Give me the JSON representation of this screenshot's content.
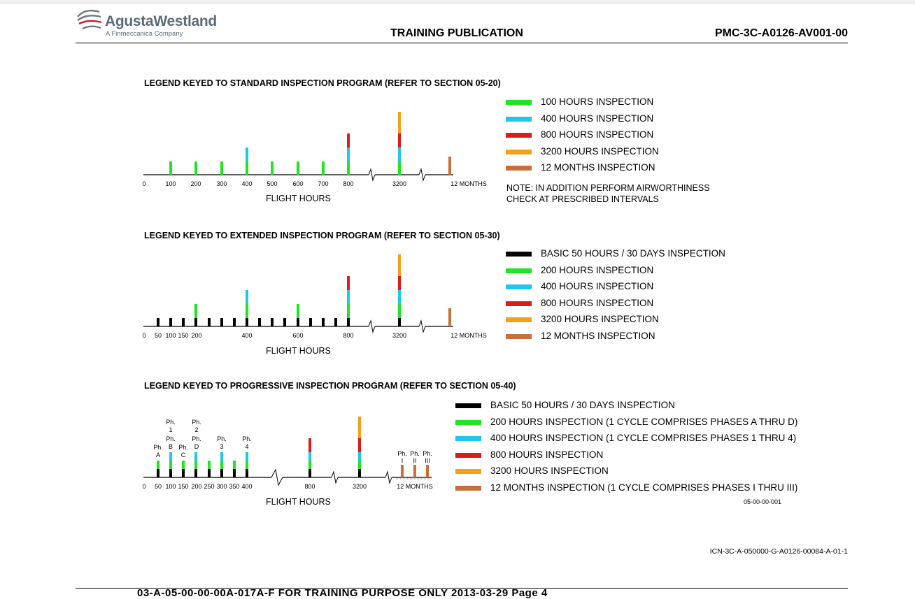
{
  "header": {
    "logo_name": "AgustaWestland",
    "logo_sub": "A Finmeccanica Company",
    "title": "TRAINING PUBLICATION",
    "doc_code": "PMC-3C-A0126-AV001-00"
  },
  "colors": {
    "basic": "#000000",
    "green": "#22e522",
    "cyan": "#1ec7ee",
    "red": "#e01a1a",
    "orange": "#f5a01a",
    "brown": "#c8703a"
  },
  "sections": [
    {
      "title": "LEGEND KEYED TO STANDARD INSPECTION PROGRAM (REFER TO SECTION 05-20)",
      "axis_label": "FLIGHT HOURS",
      "tick_labels": [
        "0",
        "100",
        "200",
        "300",
        "400",
        "500",
        "600",
        "700",
        "800",
        "3200",
        "12 MONTHS"
      ],
      "legend": [
        {
          "label": "100 HOURS INSPECTION",
          "color": "#22e522"
        },
        {
          "label": "400 HOURS INSPECTION",
          "color": "#1ec7ee"
        },
        {
          "label": "800 HOURS INSPECTION",
          "color": "#e01a1a"
        },
        {
          "label": "3200 HOURS INSPECTION",
          "color": "#f5a01a"
        },
        {
          "label": "12 MONTHS INSPECTION",
          "color": "#c8703a"
        }
      ],
      "note": [
        "NOTE: IN ADDITION PERFORM AIRWORTHINESS",
        "CHECK AT PRESCRIBED INTERVALS"
      ]
    },
    {
      "title": "LEGEND KEYED TO EXTENDED INSPECTION PROGRAM (REFER TO SECTION 05-30)",
      "axis_label": "FLIGHT HOURS",
      "tick_labels": [
        "0",
        "50",
        "100",
        "150",
        "200",
        "400",
        "600",
        "800",
        "3200",
        "12 MONTHS"
      ],
      "legend": [
        {
          "label": "BASIC 50 HOURS / 30 DAYS INSPECTION",
          "color": "#000000"
        },
        {
          "label": "200 HOURS INSPECTION",
          "color": "#22e522"
        },
        {
          "label": "400 HOURS INSPECTION",
          "color": "#1ec7ee"
        },
        {
          "label": "800 HOURS INSPECTION",
          "color": "#e01a1a"
        },
        {
          "label": "3200 HOURS INSPECTION",
          "color": "#f5a01a"
        },
        {
          "label": "12 MONTHS INSPECTION",
          "color": "#c8703a"
        }
      ]
    },
    {
      "title": "LEGEND KEYED TO PROGRESSIVE INSPECTION PROGRAM (REFER TO SECTION 05-40)",
      "axis_label": "FLIGHT HOURS",
      "tick_labels": [
        "0",
        "50",
        "100",
        "150",
        "200",
        "250",
        "300",
        "350",
        "400",
        "800",
        "3200",
        "12 MONTHS"
      ],
      "phase_labels": [
        "Ph.",
        "A",
        "Ph.",
        "1",
        "Ph.",
        "B",
        "Ph.",
        "C",
        "Ph.",
        "2",
        "Ph.",
        "D",
        "Ph.",
        "3",
        "Ph.",
        "4",
        "Ph.",
        "I",
        "Ph.",
        "II",
        "Ph.",
        "III"
      ],
      "legend": [
        {
          "label": "BASIC 50 HOURS / 30 DAYS INSPECTION",
          "color": "#000000"
        },
        {
          "label": "200 HOURS INSPECTION (1 CYCLE COMPRISES PHASES A THRU D)",
          "color": "#22e522"
        },
        {
          "label": "400 HOURS INSPECTION (1 CYCLE COMPRISES PHASES 1 THRU 4)",
          "color": "#1ec7ee"
        },
        {
          "label": "800 HOURS INSPECTION",
          "color": "#e01a1a"
        },
        {
          "label": "3200 HOURS INSPECTION",
          "color": "#f5a01a"
        },
        {
          "label": "12 MONTHS INSPECTION (1 CYCLE COMPRISES PHASES I THRU III)",
          "color": "#c8703a"
        }
      ],
      "figure_code": "05-00-00-001"
    }
  ],
  "icn": "ICN-3C-A-050000-G-A0126-00084-A-01-1",
  "footer": {
    "text": "03-A-05-00-00-00A-017A-F    FOR TRAINING PURPOSE ONLY    2013-03-29 Page 4"
  }
}
